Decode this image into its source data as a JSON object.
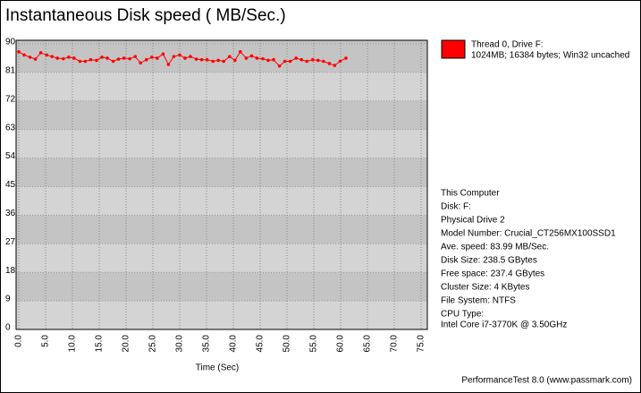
{
  "chart_data": {
    "type": "line",
    "title": "Instantaneous Disk speed ( MB/Sec.)",
    "x_label": "Time (Sec)",
    "footer": "PerformanceTest 8.0 (www.passmark.com)",
    "ylim": [
      0,
      90
    ],
    "yticks": [
      0,
      9,
      18,
      27,
      36,
      45,
      54,
      63,
      72,
      81,
      90
    ],
    "xlim": [
      0,
      75
    ],
    "xticks": [
      {
        "value": 0,
        "label": "0.0"
      },
      {
        "value": 5,
        "label": "5.0"
      },
      {
        "value": 10,
        "label": "10.0"
      },
      {
        "value": 15,
        "label": "15.0"
      },
      {
        "value": 20,
        "label": "20.0"
      },
      {
        "value": 25,
        "label": "25.0"
      },
      {
        "value": 30,
        "label": "30.0"
      },
      {
        "value": 35,
        "label": "35.0"
      },
      {
        "value": 40,
        "label": "40.0"
      },
      {
        "value": 45,
        "label": "45.0"
      },
      {
        "value": 50,
        "label": "50.0"
      },
      {
        "value": 55,
        "label": "55.0"
      },
      {
        "value": 60,
        "label": "60.0"
      },
      {
        "value": 65,
        "label": "65.0"
      },
      {
        "value": 70,
        "label": "70.0"
      },
      {
        "value": 75,
        "label": "75.0"
      }
    ],
    "grid": true,
    "x": [
      0,
      1.0,
      2.1,
      3.1,
      4.1,
      5.2,
      6.2,
      7.2,
      8.3,
      9.3,
      10.3,
      11.4,
      12.4,
      13.4,
      14.5,
      15.5,
      16.5,
      17.6,
      18.6,
      19.6,
      20.7,
      21.7,
      22.7,
      23.8,
      24.8,
      25.8,
      26.9,
      27.9,
      28.9,
      30.0,
      31.0,
      32.0,
      33.1,
      34.1,
      35.1,
      36.2,
      37.2,
      38.2,
      39.3,
      40.3,
      41.3,
      42.4,
      43.4,
      44.4,
      45.5,
      46.5,
      47.5,
      48.6,
      49.6,
      50.6,
      51.7,
      52.7,
      53.7,
      54.8,
      55.8,
      56.8,
      57.9,
      58.9,
      59.9,
      61.0
    ],
    "series": [
      {
        "name": "Thread 0, Drive F:",
        "detail": "1024MB; 16384 bytes; Win32 uncached",
        "color": "#ff0000",
        "values": [
          87.5,
          86.5,
          85.8,
          85.2,
          87.2,
          86.5,
          86,
          85.5,
          85.3,
          85.8,
          85.5,
          84.5,
          84.5,
          85,
          84.8,
          85.8,
          85.5,
          84.5,
          85.2,
          85.5,
          85.3,
          86,
          84,
          85,
          85.8,
          85.5,
          86.8,
          83.5,
          86,
          86.5,
          85.5,
          86,
          85.2,
          85,
          85,
          84.5,
          84.8,
          84.5,
          86,
          84.8,
          87.5,
          85.5,
          86.2,
          85.5,
          85.3,
          84.8,
          85,
          83,
          84.5,
          84.5,
          85.5,
          85,
          84.5,
          85,
          84.8,
          84.5,
          83.8,
          83.2,
          84.5,
          85.5
        ]
      }
    ],
    "info": [
      "This Computer",
      "Disk: F:",
      "Physical Drive 2",
      "Model Number: Crucial_CT256MX100SSD1",
      "Ave. speed: 83.99 MB/Sec.",
      "Disk Size: 238.5 GBytes",
      "Free space: 237.4 GBytes",
      "Cluster Size: 4 KBytes",
      "File System: NTFS",
      "CPU Type:",
      "Intel Core i7-3770K @ 3.50GHz"
    ]
  }
}
